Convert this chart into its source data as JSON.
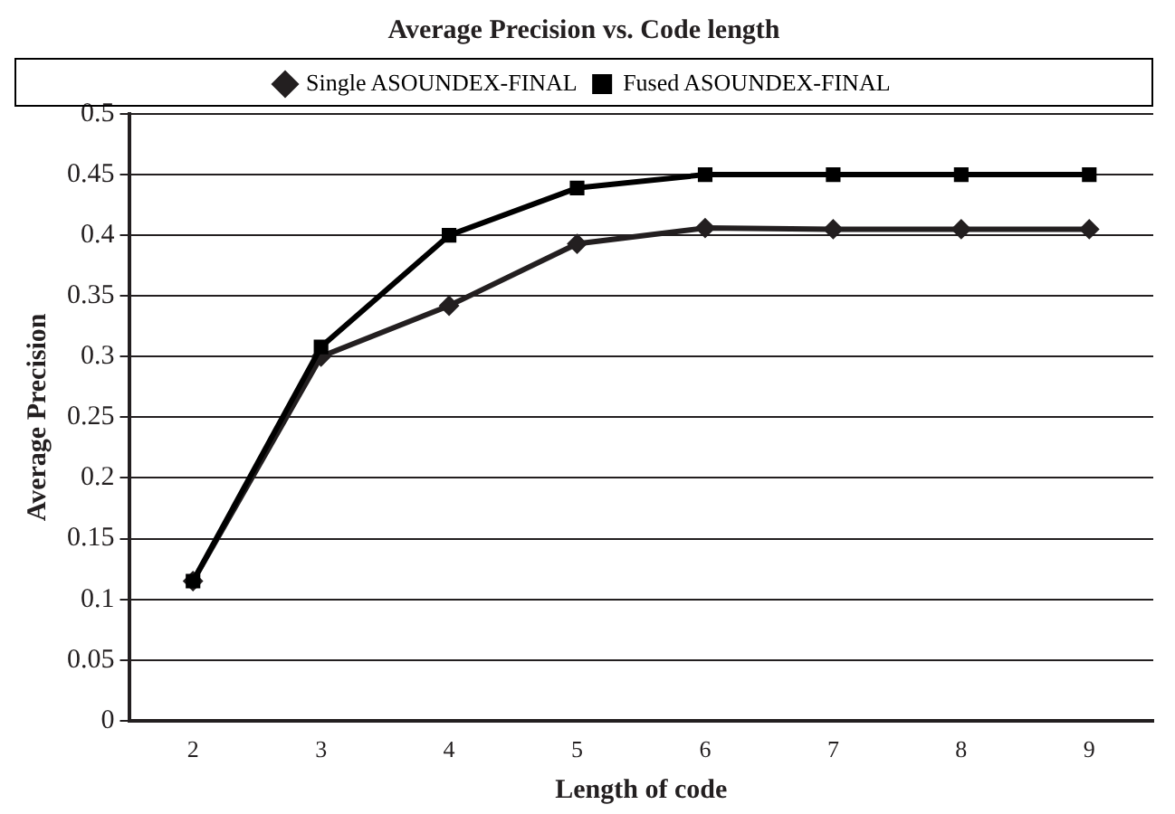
{
  "chart_data": {
    "type": "line",
    "title": "Average Precision vs. Code length",
    "xlabel": "Length of code",
    "ylabel": "Average Precision",
    "categories": [
      "2",
      "3",
      "4",
      "5",
      "6",
      "7",
      "8",
      "9"
    ],
    "series": [
      {
        "name": "Single ASOUNDEX-FINAL",
        "color": "#231f20",
        "marker": "diamond",
        "values": [
          0.115,
          0.3,
          0.342,
          0.393,
          0.406,
          0.405,
          0.405,
          0.405
        ]
      },
      {
        "name": "Fused ASOUNDEX-FINAL",
        "color": "#000000",
        "marker": "square",
        "values": [
          0.115,
          0.308,
          0.4,
          0.439,
          0.45,
          0.45,
          0.45,
          0.45
        ]
      }
    ],
    "ylim": [
      0,
      0.5
    ],
    "yticks": [
      0,
      0.05,
      0.1,
      0.15,
      0.2,
      0.25,
      0.3,
      0.35,
      0.4,
      0.45,
      0.5
    ],
    "grid": "y",
    "legend": "top",
    "line_style": "solid"
  }
}
